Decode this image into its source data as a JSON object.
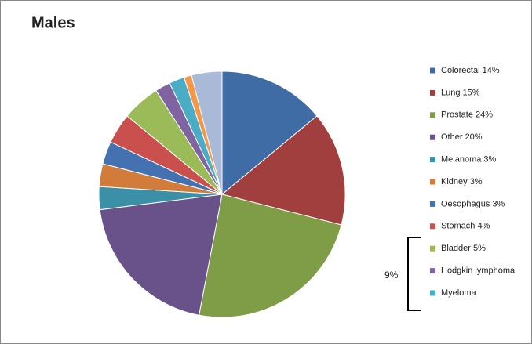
{
  "chart_data": {
    "type": "pie",
    "title": "Males",
    "categories": [
      "Colorectal 14%",
      "Lung 15%",
      "Prostate 24%",
      "Other 20%",
      "Melanoma 3%",
      "Kidney 3%",
      "Oesophagus 3%",
      "Stomach 4%",
      "Bladder 5%",
      "Hodgkin lymphoma",
      "Myeloma",
      null,
      null
    ],
    "values": [
      14,
      15,
      24,
      20,
      3,
      3,
      3,
      4,
      5,
      2,
      2,
      1,
      4
    ],
    "colors": [
      "#3f6ca4",
      "#a03f3d",
      "#7f9c47",
      "#69528a",
      "#3b8fa6",
      "#d17c3a",
      "#4472b0",
      "#c9504c",
      "#9bbb59",
      "#8064a2",
      "#4bacc6",
      "#f79646",
      "#a9bad9"
    ],
    "legend": "right",
    "annotation": "9%"
  }
}
